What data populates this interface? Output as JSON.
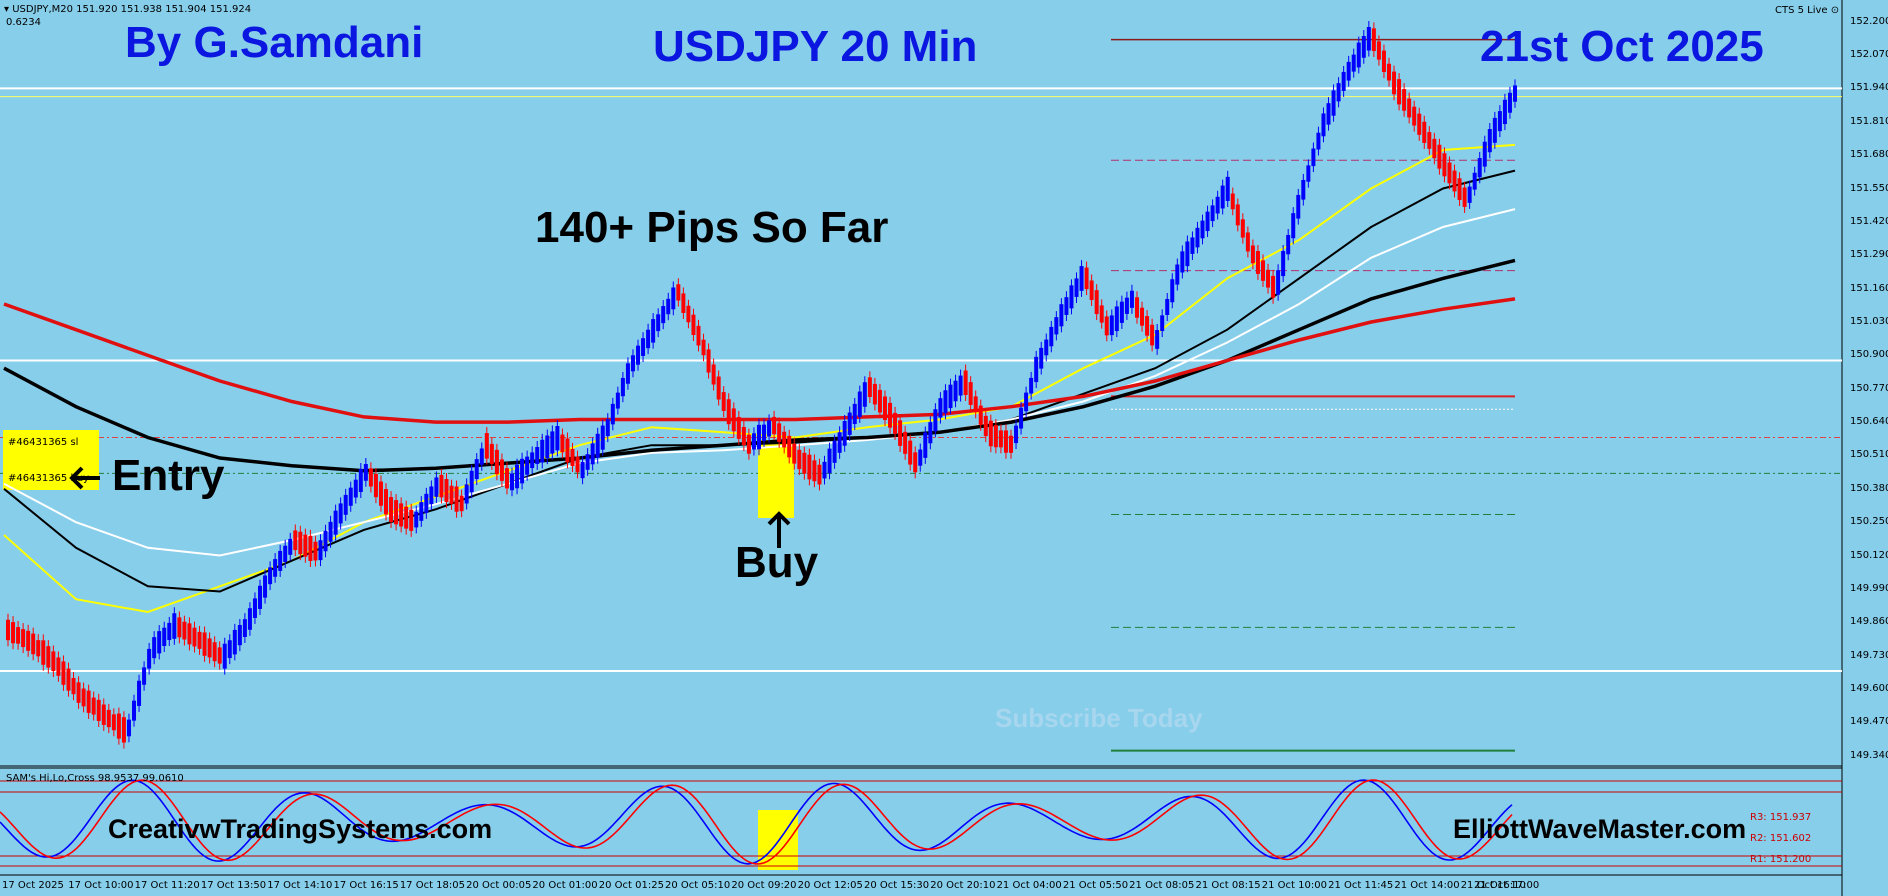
{
  "window": {
    "symbol_line": "USDJPY,M20  151.920 151.938 151.904 151.924",
    "sub_value": "0.6234",
    "live_label": "CTS 5 Live",
    "live_icon": "dropdown-arrow-icon"
  },
  "overlays": {
    "author": "By G.Samdani",
    "title": "USDJPY 20 Min",
    "date": "21st Oct 2025",
    "pips": "140+ Pips So Far",
    "entry": "Entry",
    "buy": "Buy",
    "subscribe": "Subscribe Today",
    "site_left": "CreativwTradingSystems.com",
    "site_right": "ElliottWaveMaster.com",
    "order_sl": "#46431365 sl",
    "order_buy": "#46431365 buy"
  },
  "indicator": {
    "label": "SAM's Hi,Lo,Cross 98.9537 99.0610",
    "right_labels": [
      "R3: 151.937",
      "R2: 151.602",
      "R1: 151.200"
    ]
  },
  "colors": {
    "background": "#87ceeb",
    "bull_candle": "#0000ff",
    "bear_candle": "#ff0000",
    "title_text": "#0b16e0",
    "highlight": "#ffff00"
  },
  "chart_data": {
    "type": "candlestick",
    "y_ticks": [
      "152.200",
      "152.070",
      "151.940",
      "151.810",
      "151.680",
      "151.550",
      "151.420",
      "151.290",
      "151.160",
      "151.030",
      "150.900",
      "150.770",
      "150.640",
      "150.510",
      "150.380",
      "150.250",
      "150.120",
      "149.990",
      "149.860",
      "149.730",
      "149.600",
      "149.470",
      "149.340"
    ],
    "ylim": [
      149.3,
      152.23
    ],
    "x_ticks": [
      "17 Oct 2025",
      "17 Oct 10:00",
      "17 Oct 11:20",
      "17 Oct 13:50",
      "17 Oct 14:10",
      "17 Oct 16:15",
      "17 Oct 18:05",
      "20 Oct 00:05",
      "20 Oct 01:00",
      "20 Oct 01:25",
      "20 Oct 05:10",
      "20 Oct 09:20",
      "20 Oct 12:05",
      "20 Oct 15:30",
      "20 Oct 20:10",
      "21 Oct 04:00",
      "21 Oct 05:50",
      "21 Oct 08:05",
      "21 Oct 08:15",
      "21 Oct 10:00",
      "21 Oct 11:45",
      "21 Oct 14:00",
      "21 Oct 16:10",
      "21 Oct 17:00"
    ],
    "price_path": [
      149.83,
      149.78,
      149.7,
      149.58,
      149.5,
      149.43,
      149.75,
      149.85,
      149.79,
      149.72,
      149.85,
      150.05,
      150.18,
      150.13,
      150.3,
      150.45,
      150.3,
      150.25,
      150.4,
      150.32,
      150.55,
      150.4,
      150.5,
      150.58,
      150.45,
      150.6,
      150.85,
      151.0,
      151.15,
      150.95,
      150.7,
      150.55,
      150.63,
      150.5,
      150.43,
      150.6,
      150.78,
      150.65,
      150.47,
      150.7,
      150.8,
      150.6,
      150.55,
      150.85,
      151.05,
      151.22,
      151.0,
      151.12,
      150.95,
      151.25,
      151.4,
      151.55,
      151.3,
      151.15,
      151.5,
      151.8,
      152.0,
      152.15,
      151.95,
      151.8,
      151.65,
      151.5,
      151.75,
      151.92
    ],
    "series": [
      {
        "name": "ma_yellow",
        "color": "#ffff00",
        "values": [
          150.2,
          149.95,
          149.9,
          150.0,
          150.1,
          150.25,
          150.35,
          150.45,
          150.55,
          150.62,
          150.6,
          150.58,
          150.62,
          150.65,
          150.7,
          150.85,
          150.98,
          151.2,
          151.35,
          151.55,
          151.7,
          151.72
        ]
      },
      {
        "name": "ma_black_fast",
        "color": "#000000",
        "values": [
          150.38,
          150.15,
          150.0,
          149.98,
          150.1,
          150.22,
          150.3,
          150.4,
          150.5,
          150.55,
          150.55,
          150.56,
          150.58,
          150.6,
          150.65,
          150.75,
          150.85,
          151.0,
          151.2,
          151.4,
          151.55,
          151.62
        ]
      },
      {
        "name": "ma_white",
        "color": "#ffffff",
        "values": [
          150.4,
          150.25,
          150.15,
          150.12,
          150.18,
          150.25,
          150.32,
          150.4,
          150.48,
          150.52,
          150.53,
          150.55,
          150.57,
          150.6,
          150.65,
          150.72,
          150.82,
          150.95,
          151.1,
          151.28,
          151.4,
          151.47
        ]
      },
      {
        "name": "ma_black_slow",
        "color": "#000000",
        "values": [
          150.85,
          150.7,
          150.58,
          150.5,
          150.47,
          150.45,
          150.46,
          150.48,
          150.5,
          150.53,
          150.55,
          150.57,
          150.58,
          150.6,
          150.64,
          150.7,
          150.78,
          150.88,
          151.0,
          151.12,
          151.2,
          151.27
        ]
      },
      {
        "name": "ma_red",
        "color": "#e01010",
        "values": [
          151.1,
          151.0,
          150.9,
          150.8,
          150.72,
          150.66,
          150.64,
          150.64,
          150.65,
          150.65,
          150.65,
          150.65,
          150.66,
          150.67,
          150.7,
          150.74,
          150.8,
          150.88,
          150.96,
          151.03,
          151.08,
          151.12
        ]
      }
    ]
  }
}
